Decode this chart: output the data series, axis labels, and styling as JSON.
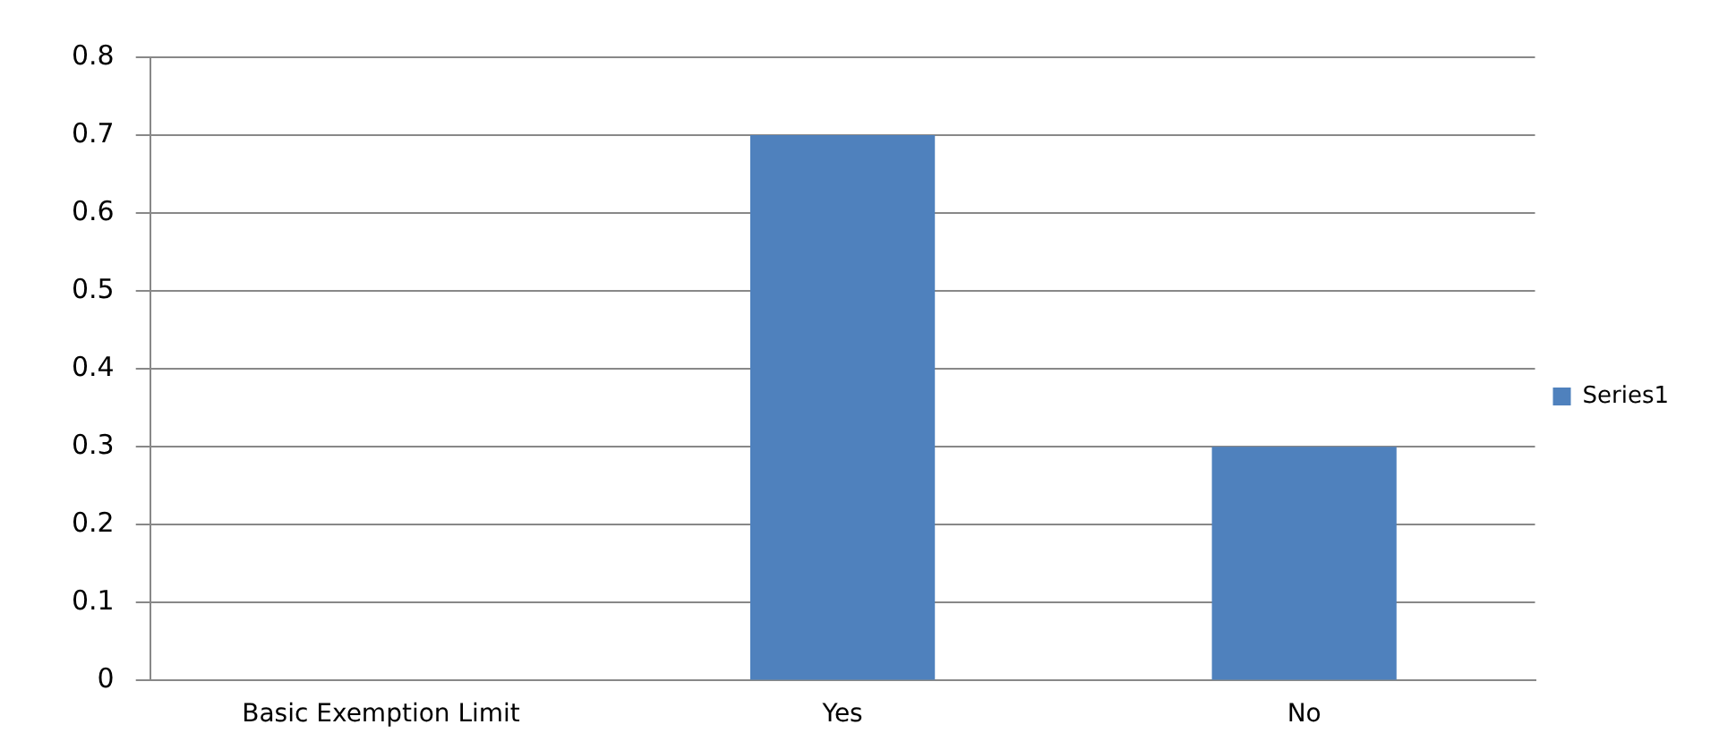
{
  "chart_data": {
    "type": "bar",
    "categories": [
      "Basic Exemption Limit",
      "Yes",
      "No"
    ],
    "series": [
      {
        "name": "Series1",
        "color": "#4f81bd",
        "values": [
          null,
          0.7,
          0.3
        ]
      }
    ],
    "ylim": [
      0,
      0.8
    ],
    "yticks": [
      0,
      0.1,
      0.2,
      0.3,
      0.4,
      0.5,
      0.6,
      0.7,
      0.8
    ],
    "grid": "y",
    "legend": "right"
  }
}
